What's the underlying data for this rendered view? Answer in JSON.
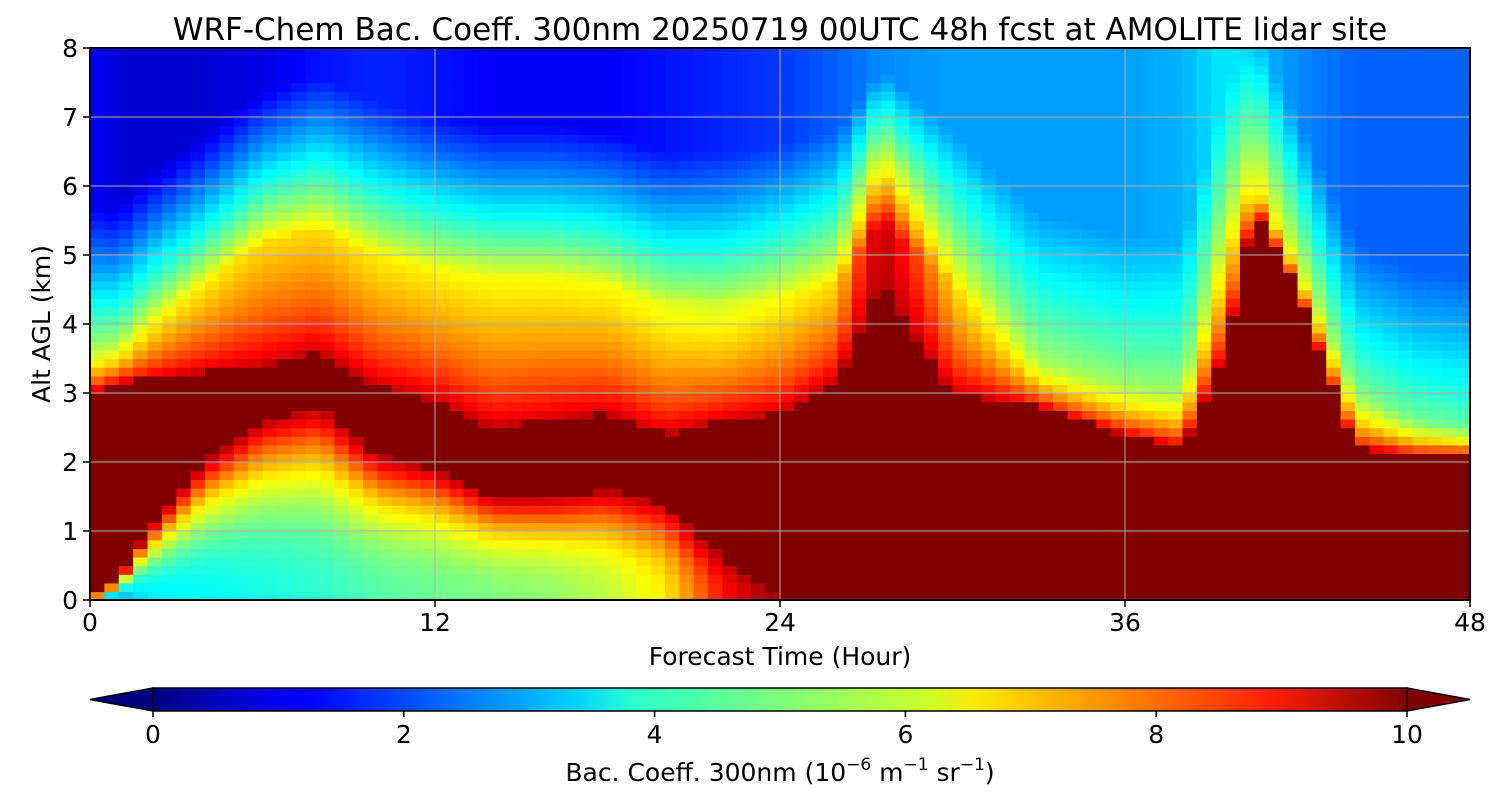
{
  "chart_data": {
    "type": "heatmap",
    "title": "WRF-Chem Bac. Coeff. 300nm  20250719 00UTC 48h fcst at AMOLITE lidar site",
    "xlabel": "Forecast Time (Hour)",
    "ylabel": "Alt AGL (km)",
    "xlim": [
      0,
      48
    ],
    "ylim": [
      0,
      8
    ],
    "x_ticks": [
      0,
      12,
      24,
      36,
      48
    ],
    "y_ticks": [
      0,
      1,
      2,
      3,
      4,
      5,
      6,
      7,
      8
    ],
    "grid": true,
    "colormap": "jet",
    "colorbar": {
      "orientation": "horizontal",
      "placement": "bottom",
      "label_main": "Bac. Coeff. 300nm  (10",
      "label_exp1": "−6",
      "label_mid": " m",
      "label_exp2": "−1",
      "label_mid2": " sr",
      "label_exp3": "−1",
      "label_end": ")",
      "range": [
        0,
        10
      ],
      "ticks": [
        0,
        2,
        4,
        6,
        8,
        10
      ],
      "extend": "both"
    },
    "colors": {
      "low": "#00007f",
      "high": "#7f0000"
    },
    "x_hours": [
      0,
      1,
      2,
      4,
      6,
      8,
      10,
      12,
      14,
      16,
      18,
      20,
      22,
      24,
      26,
      27.5,
      30,
      33,
      36,
      38,
      39.5,
      40.5,
      42,
      44,
      46,
      48
    ],
    "boundary_km": [
      0,
      0.3,
      1.0,
      2.0,
      2.6,
      2.8,
      2.1,
      1.9,
      1.5,
      1.5,
      1.6,
      1.4,
      0.6,
      0,
      0,
      0,
      0,
      0,
      0,
      0,
      0,
      0,
      0,
      0,
      0,
      0
    ],
    "boundary_top_km": [
      3.0,
      3.15,
      3.2,
      3.3,
      3.4,
      3.6,
      3.1,
      2.9,
      2.5,
      2.6,
      2.7,
      2.4,
      2.6,
      2.7,
      3.2,
      4.6,
      3.0,
      2.8,
      2.4,
      2.2,
      3.6,
      5.7,
      4.5,
      2.2,
      2.1,
      2.1
    ],
    "aloft_km": [
      3.5,
      3.6,
      4.0,
      4.6,
      5.2,
      5.4,
      5.0,
      4.8,
      4.7,
      4.7,
      4.6,
      4.3,
      4.3,
      4.4,
      4.6,
      5.5,
      4.6,
      3.4,
      3.1,
      3.0,
      5.2,
      6.0,
      4.8,
      3.0,
      2.6,
      2.5
    ],
    "aloft_peak": [
      6.0,
      6.0,
      6.2,
      6.4,
      6.6,
      6.6,
      6.4,
      6.3,
      6.2,
      6.2,
      6.2,
      6.0,
      5.8,
      6.2,
      6.6,
      9.5,
      6.6,
      5.6,
      5.4,
      5.4,
      6.0,
      6.8,
      6.2,
      5.2,
      5.0,
      4.8
    ],
    "surface_peak": [
      3.4,
      3.0,
      3.6,
      3.8,
      4.0,
      4.2,
      4.6,
      4.8,
      5.0,
      5.2,
      5.6,
      6.4,
      8.6,
      10,
      10,
      10,
      10,
      10,
      10,
      10,
      10,
      10,
      10,
      10,
      10,
      10
    ],
    "free_trop": [
      1.2,
      0.8,
      0.8,
      0.8,
      1.0,
      1.4,
      1.6,
      1.4,
      1.2,
      1.2,
      1.2,
      1.4,
      1.6,
      1.8,
      2.2,
      2.6,
      2.8,
      2.8,
      2.8,
      3.0,
      3.6,
      3.2,
      2.6,
      2.2,
      2.2,
      2.2
    ]
  }
}
